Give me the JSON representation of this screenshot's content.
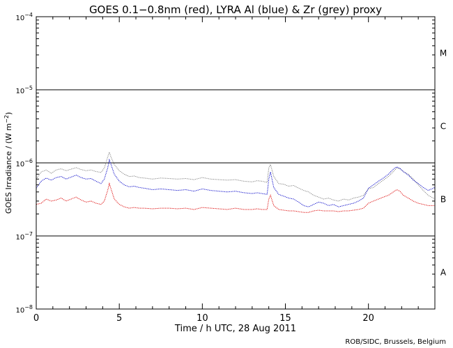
{
  "chart_data": {
    "type": "line",
    "title": "GOES 0.1−0.8nm (red), LYRA Al (blue) & Zr (grey) proxy",
    "xlabel": "Time / h UTC, 28 Aug 2011",
    "ylabel_main": "GOES Irradiance / (W m",
    "ylabel_sup": "−2",
    "ylabel_end": ")",
    "xlim": [
      0,
      24
    ],
    "ylim": [
      1e-08,
      0.0001
    ],
    "yscale": "log",
    "xticks": [
      0,
      5,
      10,
      15,
      20
    ],
    "xtick_labels": [
      "0",
      "5",
      "10",
      "15",
      "20"
    ],
    "yticks": [
      1e-08,
      1e-07,
      1e-06,
      1e-05,
      0.0001
    ],
    "ytick_labels": [
      {
        "base": "10",
        "exp": "−8"
      },
      {
        "base": "10",
        "exp": "−7"
      },
      {
        "base": "10",
        "exp": "−6"
      },
      {
        "base": "10",
        "exp": "−5"
      },
      {
        "base": "10",
        "exp": "−4"
      }
    ],
    "reference_lines": [
      1e-07,
      1e-06,
      1e-05
    ],
    "flare_classes": [
      {
        "label": "M",
        "y": 3.16e-05
      },
      {
        "label": "C",
        "y": 3.16e-06
      },
      {
        "label": "B",
        "y": 3.16e-07
      },
      {
        "label": "A",
        "y": 3.16e-08
      }
    ],
    "series": [
      {
        "color": "#808080",
        "x": [
          0,
          0.3,
          0.6,
          0.9,
          1.2,
          1.5,
          1.8,
          2.1,
          2.4,
          2.7,
          3.0,
          3.3,
          3.6,
          3.9,
          4.1,
          4.3,
          4.4,
          4.5,
          4.7,
          5.0,
          5.3,
          5.6,
          5.9,
          6.2,
          6.5,
          7.0,
          7.5,
          8.0,
          8.5,
          9.0,
          9.5,
          10.0,
          10.5,
          11.0,
          11.5,
          12.0,
          12.5,
          13.0,
          13.3,
          13.6,
          13.9,
          14.0,
          14.1,
          14.3,
          14.6,
          14.9,
          15.2,
          15.5,
          15.8,
          16.1,
          16.4,
          16.7,
          17.0,
          17.3,
          17.6,
          17.9,
          18.2,
          18.5,
          18.8,
          19.1,
          19.4,
          19.7,
          20.0,
          20.3,
          20.6,
          20.9,
          21.2,
          21.5,
          21.7,
          21.9,
          22.1,
          22.4,
          22.7,
          23.0,
          23.3,
          23.6,
          24.0
        ],
        "y": [
          6e-07,
          7.5e-07,
          8e-07,
          7.2e-07,
          8e-07,
          8.3e-07,
          7.8e-07,
          8.2e-07,
          8.6e-07,
          8.1e-07,
          7.8e-07,
          8e-07,
          7.6e-07,
          7.4e-07,
          8.5e-07,
          1.2e-06,
          1.4e-06,
          1.2e-06,
          9.5e-07,
          7.8e-07,
          7e-07,
          6.5e-07,
          6.6e-07,
          6.3e-07,
          6.2e-07,
          6e-07,
          6.2e-07,
          6.1e-07,
          6e-07,
          6.1e-07,
          5.9e-07,
          6.3e-07,
          6e-07,
          5.9e-07,
          5.8e-07,
          5.9e-07,
          5.6e-07,
          5.5e-07,
          5.7e-07,
          5.6e-07,
          5.4e-07,
          8.5e-07,
          9.5e-07,
          6.5e-07,
          5.2e-07,
          5.1e-07,
          4.8e-07,
          4.9e-07,
          4.5e-07,
          4.2e-07,
          4e-07,
          3.6e-07,
          3.4e-07,
          3.2e-07,
          3.3e-07,
          3.1e-07,
          3e-07,
          3.2e-07,
          3.1e-07,
          3.3e-07,
          3.4e-07,
          3.6e-07,
          4.4e-07,
          4.6e-07,
          5.2e-07,
          5.8e-07,
          6.5e-07,
          7.6e-07,
          8.5e-07,
          8.3e-07,
          7.6e-07,
          7e-07,
          6e-07,
          5e-07,
          4.2e-07,
          3.6e-07,
          3.2e-07
        ]
      },
      {
        "color": "#0000c8",
        "x": [
          0,
          0.3,
          0.6,
          0.9,
          1.2,
          1.5,
          1.8,
          2.1,
          2.4,
          2.7,
          3.0,
          3.3,
          3.6,
          3.9,
          4.1,
          4.3,
          4.4,
          4.5,
          4.7,
          5.0,
          5.3,
          5.6,
          5.9,
          6.2,
          6.5,
          7.0,
          7.5,
          8.0,
          8.5,
          9.0,
          9.5,
          10.0,
          10.5,
          11.0,
          11.5,
          12.0,
          12.5,
          13.0,
          13.3,
          13.6,
          13.9,
          14.0,
          14.1,
          14.3,
          14.6,
          14.9,
          15.2,
          15.5,
          15.8,
          16.1,
          16.4,
          16.7,
          17.0,
          17.3,
          17.6,
          17.9,
          18.2,
          18.5,
          18.8,
          19.1,
          19.4,
          19.7,
          20.0,
          20.3,
          20.6,
          20.9,
          21.2,
          21.5,
          21.7,
          21.9,
          22.1,
          22.4,
          22.7,
          23.0,
          23.3,
          23.6,
          24.0
        ],
        "y": [
          4.5e-07,
          5.6e-07,
          6.2e-07,
          5.8e-07,
          6.3e-07,
          6.5e-07,
          6e-07,
          6.4e-07,
          6.8e-07,
          6.3e-07,
          6e-07,
          6.1e-07,
          5.6e-07,
          5.2e-07,
          6e-07,
          8.5e-07,
          1.1e-06,
          9.5e-07,
          7e-07,
          5.6e-07,
          5e-07,
          4.7e-07,
          4.8e-07,
          4.6e-07,
          4.5e-07,
          4.3e-07,
          4.4e-07,
          4.3e-07,
          4.2e-07,
          4.3e-07,
          4.1e-07,
          4.4e-07,
          4.2e-07,
          4.1e-07,
          4e-07,
          4.1e-07,
          3.9e-07,
          3.8e-07,
          3.9e-07,
          3.8e-07,
          3.7e-07,
          6e-07,
          7.5e-07,
          4.6e-07,
          3.7e-07,
          3.5e-07,
          3.3e-07,
          3.2e-07,
          2.9e-07,
          2.6e-07,
          2.5e-07,
          2.7e-07,
          2.9e-07,
          2.8e-07,
          2.6e-07,
          2.7e-07,
          2.5e-07,
          2.6e-07,
          2.7e-07,
          2.8e-07,
          3e-07,
          3.3e-07,
          4.5e-07,
          5e-07,
          5.6e-07,
          6.2e-07,
          7e-07,
          8.2e-07,
          8.8e-07,
          8.4e-07,
          7.6e-07,
          6.8e-07,
          5.8e-07,
          5.2e-07,
          4.6e-07,
          4.2e-07,
          4.6e-07
        ]
      },
      {
        "color": "#dc0000",
        "x": [
          0,
          0.3,
          0.6,
          0.9,
          1.2,
          1.5,
          1.8,
          2.1,
          2.4,
          2.7,
          3.0,
          3.3,
          3.6,
          3.9,
          4.1,
          4.3,
          4.4,
          4.5,
          4.7,
          5.0,
          5.3,
          5.6,
          5.9,
          6.2,
          6.5,
          7.0,
          7.5,
          8.0,
          8.5,
          9.0,
          9.5,
          10.0,
          10.5,
          11.0,
          11.5,
          12.0,
          12.5,
          13.0,
          13.3,
          13.6,
          13.9,
          14.0,
          14.1,
          14.3,
          14.6,
          14.9,
          15.2,
          15.5,
          15.8,
          16.1,
          16.4,
          16.7,
          17.0,
          17.3,
          17.6,
          17.9,
          18.2,
          18.5,
          18.8,
          19.1,
          19.4,
          19.7,
          20.0,
          20.3,
          20.6,
          20.9,
          21.2,
          21.5,
          21.7,
          21.9,
          22.1,
          22.4,
          22.7,
          23.0,
          23.3,
          23.6,
          24.0
        ],
        "y": [
          2.7e-07,
          2.8e-07,
          3.2e-07,
          3e-07,
          3.1e-07,
          3.3e-07,
          3e-07,
          3.2e-07,
          3.4e-07,
          3.1e-07,
          2.9e-07,
          3e-07,
          2.8e-07,
          2.7e-07,
          3e-07,
          4.2e-07,
          5.2e-07,
          4.4e-07,
          3.2e-07,
          2.7e-07,
          2.5e-07,
          2.4e-07,
          2.45e-07,
          2.4e-07,
          2.4e-07,
          2.35e-07,
          2.4e-07,
          2.4e-07,
          2.35e-07,
          2.4e-07,
          2.3e-07,
          2.45e-07,
          2.4e-07,
          2.35e-07,
          2.3e-07,
          2.4e-07,
          2.3e-07,
          2.3e-07,
          2.35e-07,
          2.3e-07,
          2.3e-07,
          3.2e-07,
          3.6e-07,
          2.6e-07,
          2.3e-07,
          2.25e-07,
          2.2e-07,
          2.2e-07,
          2.15e-07,
          2.1e-07,
          2.1e-07,
          2.2e-07,
          2.25e-07,
          2.2e-07,
          2.2e-07,
          2.2e-07,
          2.15e-07,
          2.2e-07,
          2.2e-07,
          2.25e-07,
          2.3e-07,
          2.4e-07,
          2.8e-07,
          3e-07,
          3.2e-07,
          3.4e-07,
          3.6e-07,
          4e-07,
          4.3e-07,
          4.1e-07,
          3.6e-07,
          3.3e-07,
          3e-07,
          2.8e-07,
          2.7e-07,
          2.6e-07,
          2.6e-07
        ]
      }
    ]
  },
  "credit": "ROB/SIDC, Brussels, Belgium"
}
